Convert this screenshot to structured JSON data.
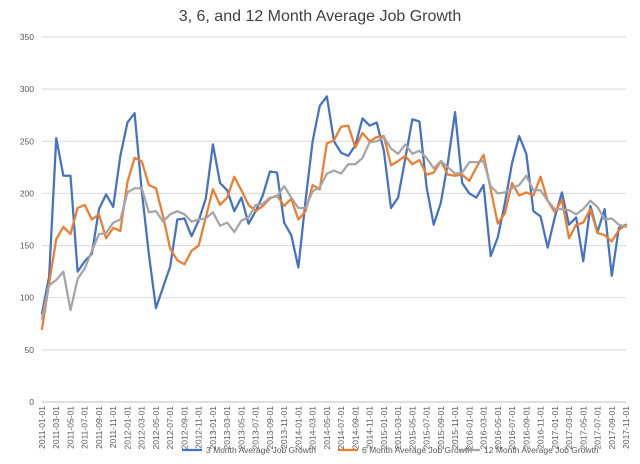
{
  "chart_data": {
    "type": "line",
    "title": "3, 6, and 12 Month Average Job Growth",
    "xlabel": "",
    "ylabel": "",
    "ylim": [
      0,
      350
    ],
    "yticks": [
      0,
      50,
      100,
      150,
      200,
      250,
      300,
      350
    ],
    "grid": true,
    "legend_position": "bottom",
    "x": [
      "2011-01-01",
      "2011-02-01",
      "2011-03-01",
      "2011-04-01",
      "2011-05-01",
      "2011-06-01",
      "2011-07-01",
      "2011-08-01",
      "2011-09-01",
      "2011-10-01",
      "2011-11-01",
      "2011-12-01",
      "2012-01-01",
      "2012-02-01",
      "2012-03-01",
      "2012-04-01",
      "2012-05-01",
      "2012-06-01",
      "2012-07-01",
      "2012-08-01",
      "2012-09-01",
      "2012-10-01",
      "2012-11-01",
      "2012-12-01",
      "2013-01-01",
      "2013-02-01",
      "2013-03-01",
      "2013-04-01",
      "2013-05-01",
      "2013-06-01",
      "2013-07-01",
      "2013-08-01",
      "2013-09-01",
      "2013-10-01",
      "2013-11-01",
      "2013-12-01",
      "2014-01-01",
      "2014-02-01",
      "2014-03-01",
      "2014-04-01",
      "2014-05-01",
      "2014-06-01",
      "2014-07-01",
      "2014-08-01",
      "2014-09-01",
      "2014-10-01",
      "2014-11-01",
      "2014-12-01",
      "2015-01-01",
      "2015-02-01",
      "2015-03-01",
      "2015-04-01",
      "2015-05-01",
      "2015-06-01",
      "2015-07-01",
      "2015-08-01",
      "2015-09-01",
      "2015-10-01",
      "2015-11-01",
      "2015-12-01",
      "2016-01-01",
      "2016-02-01",
      "2016-03-01",
      "2016-04-01",
      "2016-05-01",
      "2016-06-01",
      "2016-07-01",
      "2016-08-01",
      "2016-09-01",
      "2016-10-01",
      "2016-11-01",
      "2016-12-01",
      "2017-01-01",
      "2017-02-01",
      "2017-03-01",
      "2017-04-01",
      "2017-05-01",
      "2017-06-01",
      "2017-07-01",
      "2017-08-01",
      "2017-09-01",
      "2017-10-01",
      "2017-11-01"
    ],
    "series": [
      {
        "name": "3 Month Average Job Growth",
        "color": "#4472c4",
        "values": [
          85,
          120,
          253,
          217,
          217,
          125,
          135,
          142,
          185,
          199,
          187,
          236,
          268,
          277,
          203,
          142,
          90,
          110,
          130,
          175,
          176,
          159,
          174,
          195,
          247,
          210,
          203,
          183,
          196,
          171,
          183,
          198,
          221,
          220,
          172,
          160,
          129,
          193,
          250,
          284,
          293,
          250,
          239,
          236,
          246,
          272,
          265,
          268,
          241,
          186,
          196,
          233,
          271,
          269,
          206,
          170,
          191,
          230,
          278,
          210,
          200,
          196,
          208,
          140,
          158,
          191,
          229,
          255,
          238,
          183,
          178,
          148,
          177,
          201,
          170,
          177,
          135,
          188,
          163,
          185,
          121,
          167,
          170
        ]
      },
      {
        "name": "6 Month Average Job Growth",
        "color": "#ed7d31",
        "values": [
          70,
          114,
          156,
          168,
          161,
          186,
          189,
          175,
          180,
          157,
          167,
          164,
          211,
          234,
          231,
          208,
          205,
          178,
          147,
          136,
          132,
          145,
          150,
          177,
          204,
          189,
          196,
          216,
          203,
          189,
          183,
          188,
          195,
          198,
          188,
          195,
          175,
          183,
          208,
          204,
          248,
          251,
          264,
          265,
          244,
          258,
          250,
          254,
          255,
          227,
          231,
          236,
          228,
          232,
          218,
          220,
          231,
          218,
          217,
          218,
          212,
          225,
          237,
          204,
          171,
          181,
          210,
          198,
          201,
          198,
          216,
          193,
          182,
          194,
          157,
          170,
          172,
          185,
          162,
          160,
          154,
          165,
          170
        ]
      },
      {
        "name": "12 Month Average Job Growth",
        "color": "#a5a5a5",
        "values": [
          80,
          112,
          117,
          125,
          88,
          118,
          128,
          145,
          161,
          162,
          172,
          175,
          201,
          205,
          205,
          182,
          183,
          173,
          180,
          183,
          180,
          173,
          175,
          176,
          182,
          169,
          172,
          163,
          174,
          177,
          189,
          190,
          196,
          197,
          207,
          196,
          186,
          186,
          202,
          206,
          219,
          222,
          219,
          228,
          228,
          234,
          249,
          250,
          254,
          243,
          238,
          247,
          238,
          241,
          234,
          224,
          231,
          225,
          219,
          220,
          230,
          230,
          231,
          207,
          200,
          201,
          205,
          208,
          217,
          203,
          203,
          193,
          185,
          185,
          184,
          180,
          185,
          193,
          187,
          175,
          176,
          170,
          168
        ]
      }
    ]
  }
}
